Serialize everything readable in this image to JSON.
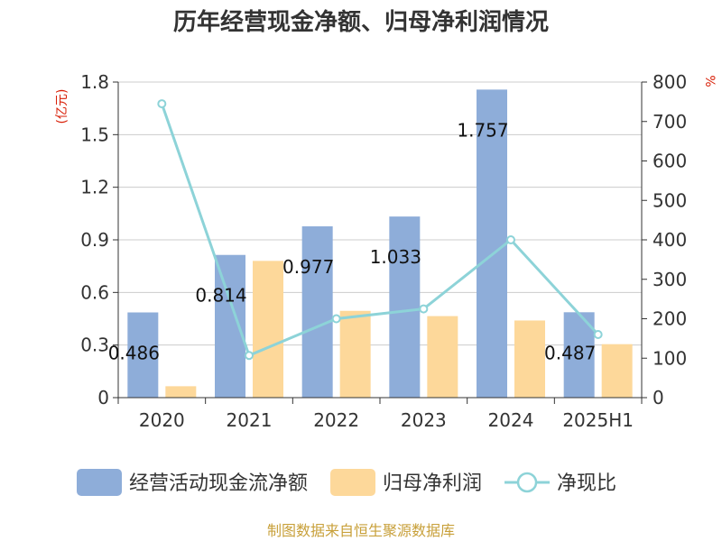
{
  "chart_data": {
    "type": "bar",
    "title": "历年经营现金净额、归母净利润情况",
    "categories": [
      "2020",
      "2021",
      "2022",
      "2023",
      "2024",
      "2025H1"
    ],
    "y_left": {
      "unit": "(亿元)",
      "range": [
        0,
        1.8
      ],
      "ticks": [
        "0",
        "0.3",
        "0.6",
        "0.9",
        "1.2",
        "1.5",
        "1.8"
      ]
    },
    "y_right": {
      "unit": "%",
      "range": [
        0,
        800
      ],
      "ticks": [
        "0",
        "100",
        "200",
        "300",
        "400",
        "500",
        "600",
        "700",
        "800"
      ]
    },
    "series": [
      {
        "name": "经营活动现金流净额",
        "type": "bar",
        "axis": "left",
        "color": "#8eadd9",
        "values": [
          0.486,
          0.814,
          0.977,
          1.033,
          1.757,
          0.487
        ],
        "labels": [
          "0.486",
          "0.814",
          "0.977",
          "1.033",
          "1.757",
          "0.487"
        ]
      },
      {
        "name": "归母净利润",
        "type": "bar",
        "axis": "left",
        "color": "#fdd89a",
        "values": [
          0.065,
          0.78,
          0.495,
          0.465,
          0.44,
          0.305
        ]
      },
      {
        "name": "净现比",
        "type": "line",
        "axis": "right",
        "color": "#8dd3d8",
        "values": [
          745,
          107,
          200,
          225,
          400,
          160
        ]
      }
    ],
    "grid": true,
    "legend": "bottom"
  },
  "source": {
    "text": "制图数据来自恒生聚源数据库",
    "color": "#c8a03a"
  }
}
